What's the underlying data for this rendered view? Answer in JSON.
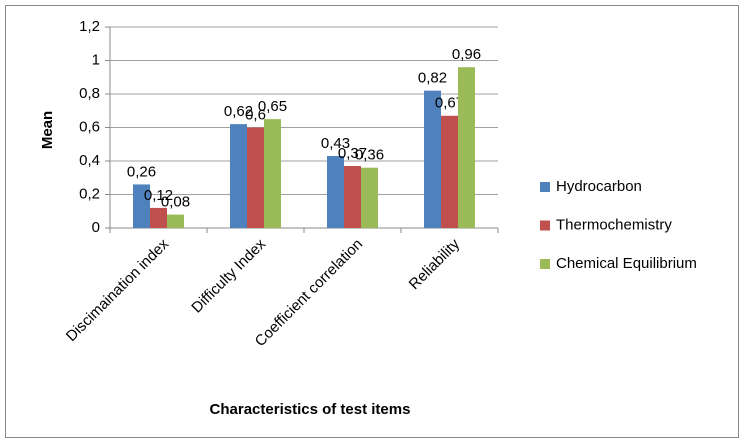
{
  "chart_data": {
    "type": "bar",
    "x_label": "Characteristics of test items",
    "y_label": "Mean",
    "categories": [
      "Discimaination index",
      "Difficulty Index",
      "Coefficient correlation",
      "Reliability"
    ],
    "series": [
      {
        "name": "Hydrocarbon",
        "color": "#4f81bd",
        "values": [
          0.26,
          0.62,
          0.43,
          0.82
        ],
        "value_labels": [
          "0,26",
          "0,62",
          "0,43",
          "0,82"
        ]
      },
      {
        "name": "Thermochemistry",
        "color": "#c0504d",
        "values": [
          0.12,
          0.6,
          0.37,
          0.67
        ],
        "value_labels": [
          "0,12",
          "0,6",
          "0,37",
          "0,67"
        ]
      },
      {
        "name": "Chemical Equilibrium",
        "color": "#9bbb59",
        "values": [
          0.08,
          0.65,
          0.36,
          0.96
        ],
        "value_labels": [
          "0,08",
          "0,65",
          "0,36",
          "0,96"
        ]
      }
    ],
    "ylim": [
      0,
      1.2
    ],
    "yticks": [
      0,
      {
        "value": 0.2,
        "label": "0,2"
      },
      {
        "value": 0.4,
        "label": "0,4"
      },
      {
        "value": 0.6,
        "label": "0,6"
      },
      {
        "value": 0.8,
        "label": "0,8"
      },
      1,
      {
        "value": 1.2,
        "label": "1,2"
      }
    ],
    "grid": true,
    "legend": "right"
  }
}
